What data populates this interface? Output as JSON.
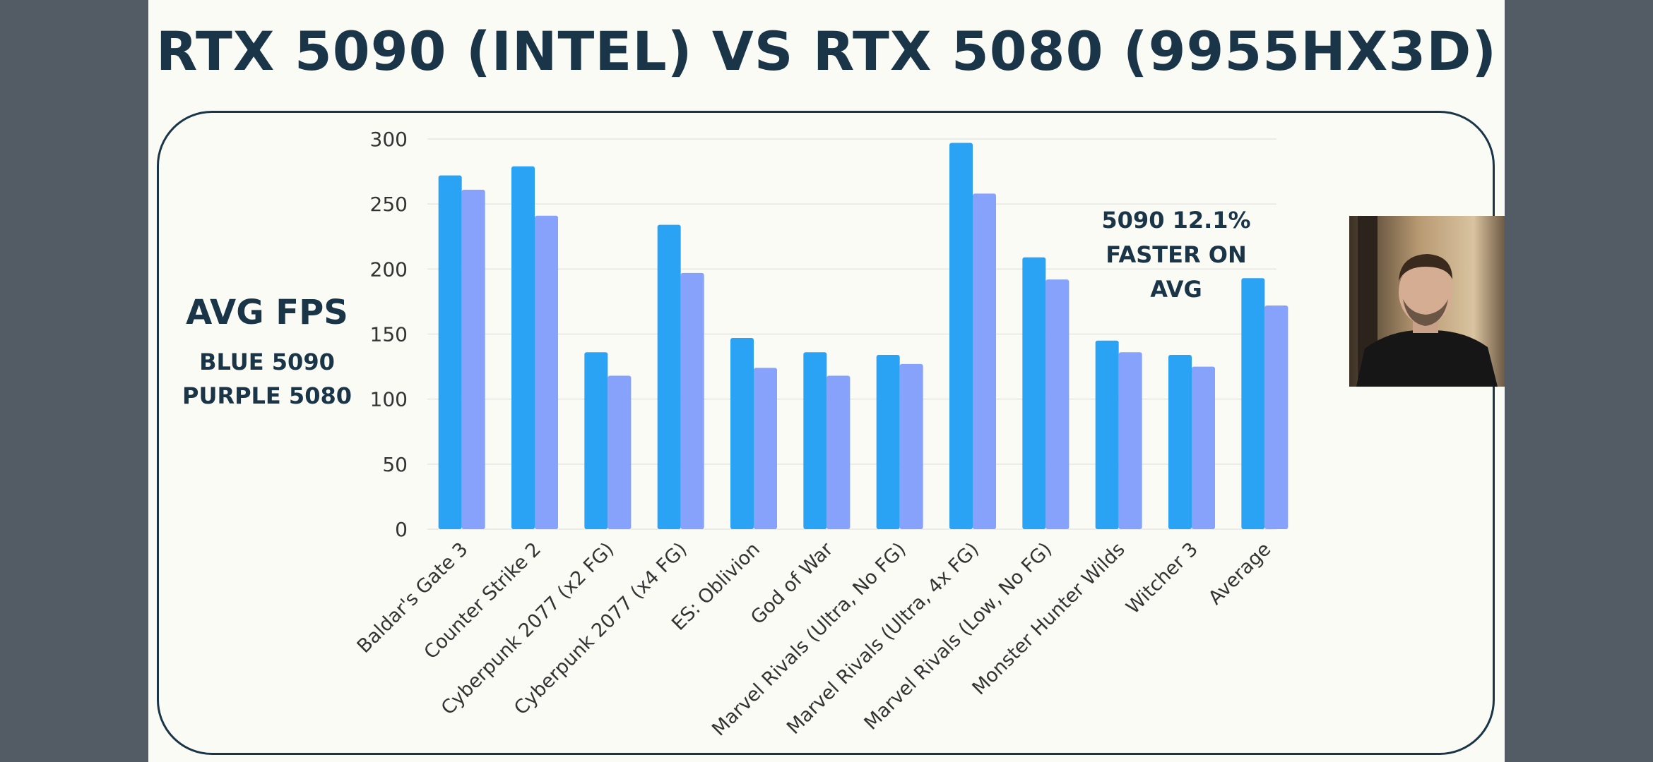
{
  "chart_data": {
    "type": "bar",
    "title": "RTX 5090 (INTEL) VS RTX 5080 (9955HX3D)",
    "ylabel": "AVG FPS",
    "legend_lines": [
      "BLUE 5090",
      "PURPLE 5080"
    ],
    "annotation_lines": [
      "5090 12.1%",
      "FASTER ON",
      "AVG"
    ],
    "categories": [
      "Baldar's Gate 3",
      "Counter Strike 2",
      "Cyberpunk 2077 (x2 FG)",
      "Cyberpunk 2077 (x4 FG)",
      "ES: Oblivion",
      "God of War",
      "Marvel Rivals (Ultra, No FG)",
      "Marvel Rivals (Ultra, 4x FG)",
      "Marvel Rivals (Low, No FG)",
      "Monster Hunter Wilds",
      "Witcher 3",
      "Average"
    ],
    "series": [
      {
        "name": "5090",
        "color": "#2aa3f4",
        "values": [
          272,
          279,
          136,
          234,
          147,
          136,
          134,
          297,
          209,
          145,
          134,
          193
        ]
      },
      {
        "name": "5080",
        "color": "#86a2fb",
        "values": [
          261,
          241,
          118,
          197,
          124,
          118,
          127,
          258,
          192,
          136,
          125,
          172
        ]
      }
    ],
    "ylim": [
      0,
      300
    ],
    "yticks": [
      0,
      50,
      100,
      150,
      200,
      250,
      300
    ],
    "grid": true,
    "legend": "left side text"
  }
}
